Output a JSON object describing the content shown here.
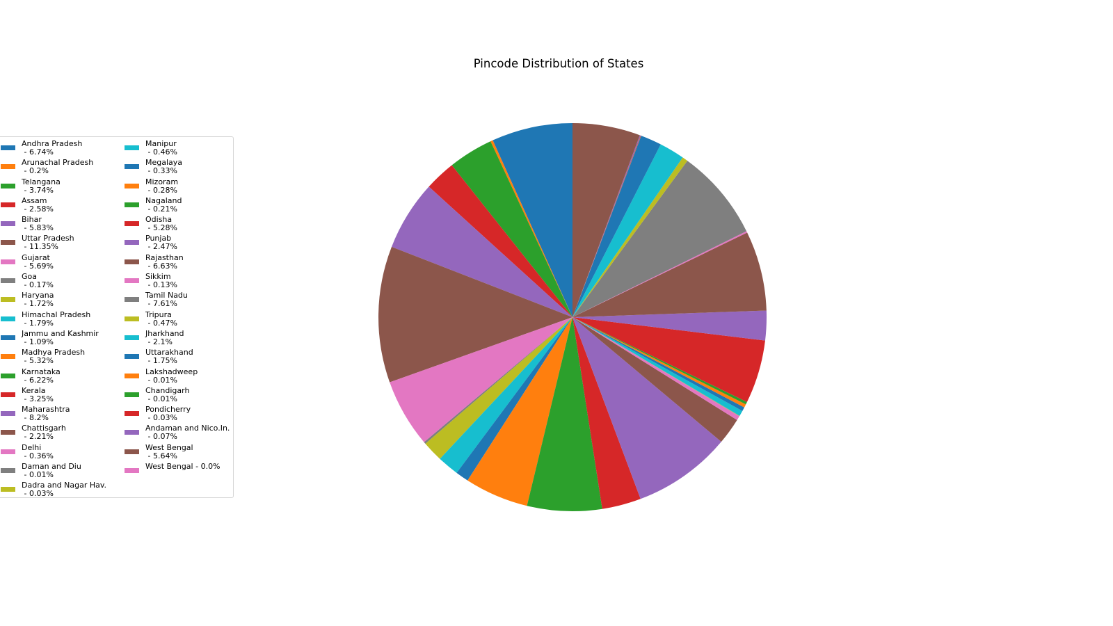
{
  "chart_data": {
    "type": "pie",
    "title": "Pincode Distribution of States",
    "start_angle_deg": 90,
    "direction": "counterclockwise",
    "legend_position": "left",
    "slices": [
      {
        "label": "Andhra Pradesh",
        "legend": "Andhra Pradesh\n - 6.74%",
        "value": 6.74,
        "color": "#1f77b4"
      },
      {
        "label": "Arunachal Pradesh",
        "legend": "Arunachal Pradesh\n - 0.2%",
        "value": 0.2,
        "color": "#ff7f0e"
      },
      {
        "label": "Telangana",
        "legend": "Telangana\n - 3.74%",
        "value": 3.74,
        "color": "#2ca02c"
      },
      {
        "label": "Assam",
        "legend": "Assam\n - 2.58%",
        "value": 2.58,
        "color": "#d62728"
      },
      {
        "label": "Bihar",
        "legend": "Bihar\n - 5.83%",
        "value": 5.83,
        "color": "#9467bd"
      },
      {
        "label": "Uttar Pradesh",
        "legend": "Uttar Pradesh\n - 11.35%",
        "value": 11.35,
        "color": "#8c564b"
      },
      {
        "label": "Gujarat",
        "legend": "Gujarat\n - 5.69%",
        "value": 5.69,
        "color": "#e377c2"
      },
      {
        "label": "Goa",
        "legend": "Goa\n - 0.17%",
        "value": 0.17,
        "color": "#7f7f7f"
      },
      {
        "label": "Haryana",
        "legend": "Haryana\n - 1.72%",
        "value": 1.72,
        "color": "#bcbd22"
      },
      {
        "label": "Himachal Pradesh",
        "legend": "Himachal Pradesh\n - 1.79%",
        "value": 1.79,
        "color": "#17becf"
      },
      {
        "label": "Jammu and Kashmir",
        "legend": "Jammu and Kashmir\n - 1.09%",
        "value": 1.09,
        "color": "#1f77b4"
      },
      {
        "label": "Madhya Pradesh",
        "legend": "Madhya Pradesh\n - 5.32%",
        "value": 5.32,
        "color": "#ff7f0e"
      },
      {
        "label": "Karnataka",
        "legend": "Karnataka\n - 6.22%",
        "value": 6.22,
        "color": "#2ca02c"
      },
      {
        "label": "Kerala",
        "legend": "Kerala\n - 3.25%",
        "value": 3.25,
        "color": "#d62728"
      },
      {
        "label": "Maharashtra",
        "legend": "Maharashtra\n - 8.2%",
        "value": 8.2,
        "color": "#9467bd"
      },
      {
        "label": "Chattisgarh",
        "legend": "Chattisgarh\n - 2.21%",
        "value": 2.21,
        "color": "#8c564b"
      },
      {
        "label": "Delhi",
        "legend": "Delhi\n - 0.36%",
        "value": 0.36,
        "color": "#e377c2"
      },
      {
        "label": "Daman and Diu",
        "legend": "Daman and Diu\n - 0.01%",
        "value": 0.01,
        "color": "#7f7f7f"
      },
      {
        "label": "Dadra and Nagar Hav.",
        "legend": "Dadra and Nagar Hav.\n - 0.03%",
        "value": 0.03,
        "color": "#bcbd22"
      },
      {
        "label": "Manipur",
        "legend": "Manipur\n - 0.46%",
        "value": 0.46,
        "color": "#17becf"
      },
      {
        "label": "Megalaya",
        "legend": "Megalaya\n - 0.33%",
        "value": 0.33,
        "color": "#1f77b4"
      },
      {
        "label": "Mizoram",
        "legend": "Mizoram\n - 0.28%",
        "value": 0.28,
        "color": "#ff7f0e"
      },
      {
        "label": "Nagaland",
        "legend": "Nagaland\n - 0.21%",
        "value": 0.21,
        "color": "#2ca02c"
      },
      {
        "label": "Odisha",
        "legend": "Odisha\n - 5.28%",
        "value": 5.28,
        "color": "#d62728"
      },
      {
        "label": "Punjab",
        "legend": "Punjab\n - 2.47%",
        "value": 2.47,
        "color": "#9467bd"
      },
      {
        "label": "Rajasthan",
        "legend": "Rajasthan\n - 6.63%",
        "value": 6.63,
        "color": "#8c564b"
      },
      {
        "label": "Sikkim",
        "legend": "Sikkim\n - 0.13%",
        "value": 0.13,
        "color": "#e377c2"
      },
      {
        "label": "Tamil Nadu",
        "legend": "Tamil Nadu\n - 7.61%",
        "value": 7.61,
        "color": "#7f7f7f"
      },
      {
        "label": "Tripura",
        "legend": "Tripura\n - 0.47%",
        "value": 0.47,
        "color": "#bcbd22"
      },
      {
        "label": "Jharkhand",
        "legend": "Jharkhand\n - 2.1%",
        "value": 2.1,
        "color": "#17becf"
      },
      {
        "label": "Uttarakhand",
        "legend": "Uttarakhand\n - 1.75%",
        "value": 1.75,
        "color": "#1f77b4"
      },
      {
        "label": "Lakshadweep",
        "legend": "Lakshadweep\n - 0.01%",
        "value": 0.01,
        "color": "#ff7f0e"
      },
      {
        "label": "Chandigarh",
        "legend": "Chandigarh\n - 0.01%",
        "value": 0.01,
        "color": "#2ca02c"
      },
      {
        "label": "Pondicherry",
        "legend": "Pondicherry\n - 0.03%",
        "value": 0.03,
        "color": "#d62728"
      },
      {
        "label": "Andaman and Nico.In.",
        "legend": "Andaman and Nico.In.\n - 0.07%",
        "value": 0.07,
        "color": "#9467bd"
      },
      {
        "label": "West Bengal",
        "legend": "West Bengal\n - 5.64%",
        "value": 5.64,
        "color": "#8c564b"
      },
      {
        "label": "West Bengal",
        "legend": "West Bengal - 0.0%",
        "value": 0.0,
        "color": "#e377c2"
      }
    ]
  }
}
